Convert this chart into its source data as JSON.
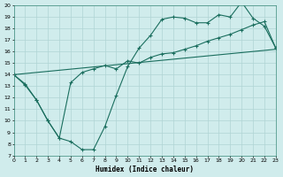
{
  "bg_color": "#d0ecec",
  "grid_color": "#b0d4d4",
  "line_color": "#1a6e5e",
  "line1_x": [
    0,
    1,
    2,
    3,
    4,
    5,
    6,
    7,
    8,
    9,
    10,
    11,
    12,
    13,
    14,
    15,
    16,
    17,
    18,
    19,
    20,
    21,
    22,
    23
  ],
  "line1_y": [
    14.0,
    13.1,
    11.8,
    10.0,
    8.5,
    8.2,
    7.5,
    7.5,
    9.5,
    12.2,
    14.7,
    16.3,
    17.4,
    18.8,
    19.0,
    18.9,
    18.5,
    18.5,
    19.2,
    19.0,
    20.3,
    18.9,
    18.2,
    16.3
  ],
  "line2_x": [
    0,
    23
  ],
  "line2_y": [
    14.0,
    16.2
  ],
  "line3_x": [
    0,
    1,
    2,
    3,
    4,
    5,
    6,
    7,
    8,
    9,
    10,
    11,
    12,
    13,
    14,
    15,
    16,
    17,
    18,
    19,
    20,
    21,
    22,
    23
  ],
  "line3_y": [
    14.0,
    13.2,
    11.8,
    10.0,
    8.5,
    13.3,
    14.2,
    14.5,
    14.8,
    14.5,
    15.2,
    15.0,
    15.5,
    15.8,
    15.9,
    16.2,
    16.5,
    16.9,
    17.2,
    17.5,
    17.9,
    18.3,
    18.6,
    16.3
  ],
  "xlim": [
    0,
    23
  ],
  "ylim": [
    7,
    20
  ],
  "xlabel": "Humidex (Indice chaleur)",
  "xticks": [
    0,
    1,
    2,
    3,
    4,
    5,
    6,
    7,
    8,
    9,
    10,
    11,
    12,
    13,
    14,
    15,
    16,
    17,
    18,
    19,
    20,
    21,
    22,
    23
  ],
  "yticks": [
    7,
    8,
    9,
    10,
    11,
    12,
    13,
    14,
    15,
    16,
    17,
    18,
    19,
    20
  ]
}
